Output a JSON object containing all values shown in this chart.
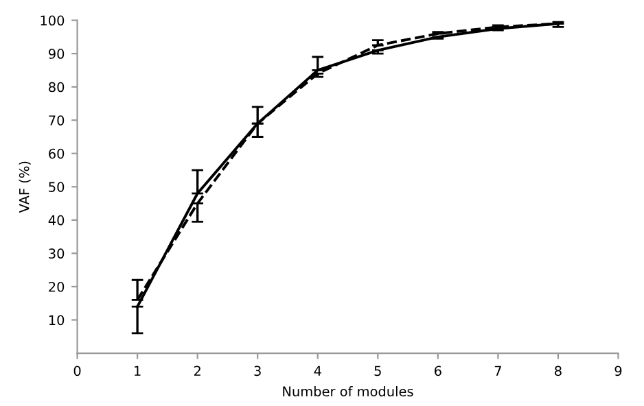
{
  "chart_data": {
    "type": "line",
    "xlabel": "Number of modules",
    "ylabel": "VAF (%)",
    "x": [
      1,
      2,
      3,
      4,
      5,
      6,
      7,
      8
    ],
    "series": [
      {
        "color": "#000000",
        "line_style": "solid",
        "values": [
          14,
          48,
          69,
          85,
          91,
          95,
          97.5,
          99
        ],
        "errors": [
          [
            6,
            14
          ],
          [
            48,
            55
          ],
          [
            69,
            74
          ],
          [
            85,
            89
          ],
          [
            90,
            91
          ],
          [
            94.5,
            95
          ],
          [
            97,
            97.5
          ],
          [
            98,
            99
          ]
        ]
      },
      {
        "color": "#000000",
        "line_style": "dashed",
        "values": [
          16,
          45,
          69,
          84,
          92.5,
          96,
          98,
          99
        ],
        "errors": [
          [
            16,
            22
          ],
          [
            39.5,
            45
          ],
          [
            65,
            69
          ],
          [
            83,
            84
          ],
          [
            92.5,
            94
          ],
          [
            96,
            96.5
          ],
          [
            98,
            98.5
          ],
          [
            99,
            99.5
          ]
        ]
      }
    ],
    "xlim": [
      0,
      9
    ],
    "xticks": [
      0,
      1,
      2,
      3,
      4,
      5,
      6,
      7,
      8,
      9
    ],
    "ylim": [
      0,
      100
    ],
    "yticks": [
      10,
      20,
      30,
      40,
      50,
      60,
      70,
      80,
      90,
      100
    ],
    "grid": false,
    "legend": false
  }
}
